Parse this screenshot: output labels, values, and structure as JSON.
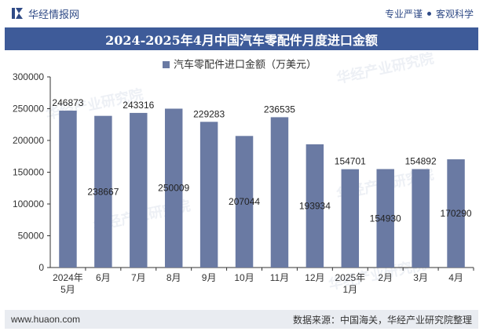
{
  "header": {
    "brand_name": "华经情报网",
    "slogan_left": "专业严谨",
    "slogan_right": "客观科学"
  },
  "title": "2024-2025年4月中国汽车零配件月度进口金额",
  "footer": {
    "site": "www.huaon.com",
    "source": "数据来源：中国海关，华经产业研究院整理"
  },
  "watermark": "华经产业研究院",
  "colors": {
    "bar": "#6a7aa3",
    "title_bg": "#3e5b99",
    "brand": "#2f4a86"
  },
  "chart_data": {
    "type": "bar",
    "categories": [
      "2024年\n5月",
      "6月",
      "7月",
      "8月",
      "9月",
      "10月",
      "11月",
      "12月",
      "2025年\n1月",
      "2月",
      "3月",
      "4月"
    ],
    "series": [
      {
        "name": "汽车零配件进口金额（万美元）",
        "values": [
          246873,
          238667,
          243316,
          250009,
          229283,
          207044,
          236535,
          193934,
          154701,
          154930,
          154892,
          170290
        ]
      }
    ],
    "label_position": [
      "above",
      "inside",
      "above",
      "inside",
      "above",
      "inside",
      "above",
      "inside",
      "above",
      "inside",
      "above",
      "inside"
    ],
    "ylim": [
      0,
      300000
    ],
    "yticks": [
      0,
      50000,
      100000,
      150000,
      200000,
      250000,
      300000
    ],
    "legend": "top-center",
    "grid": false
  }
}
